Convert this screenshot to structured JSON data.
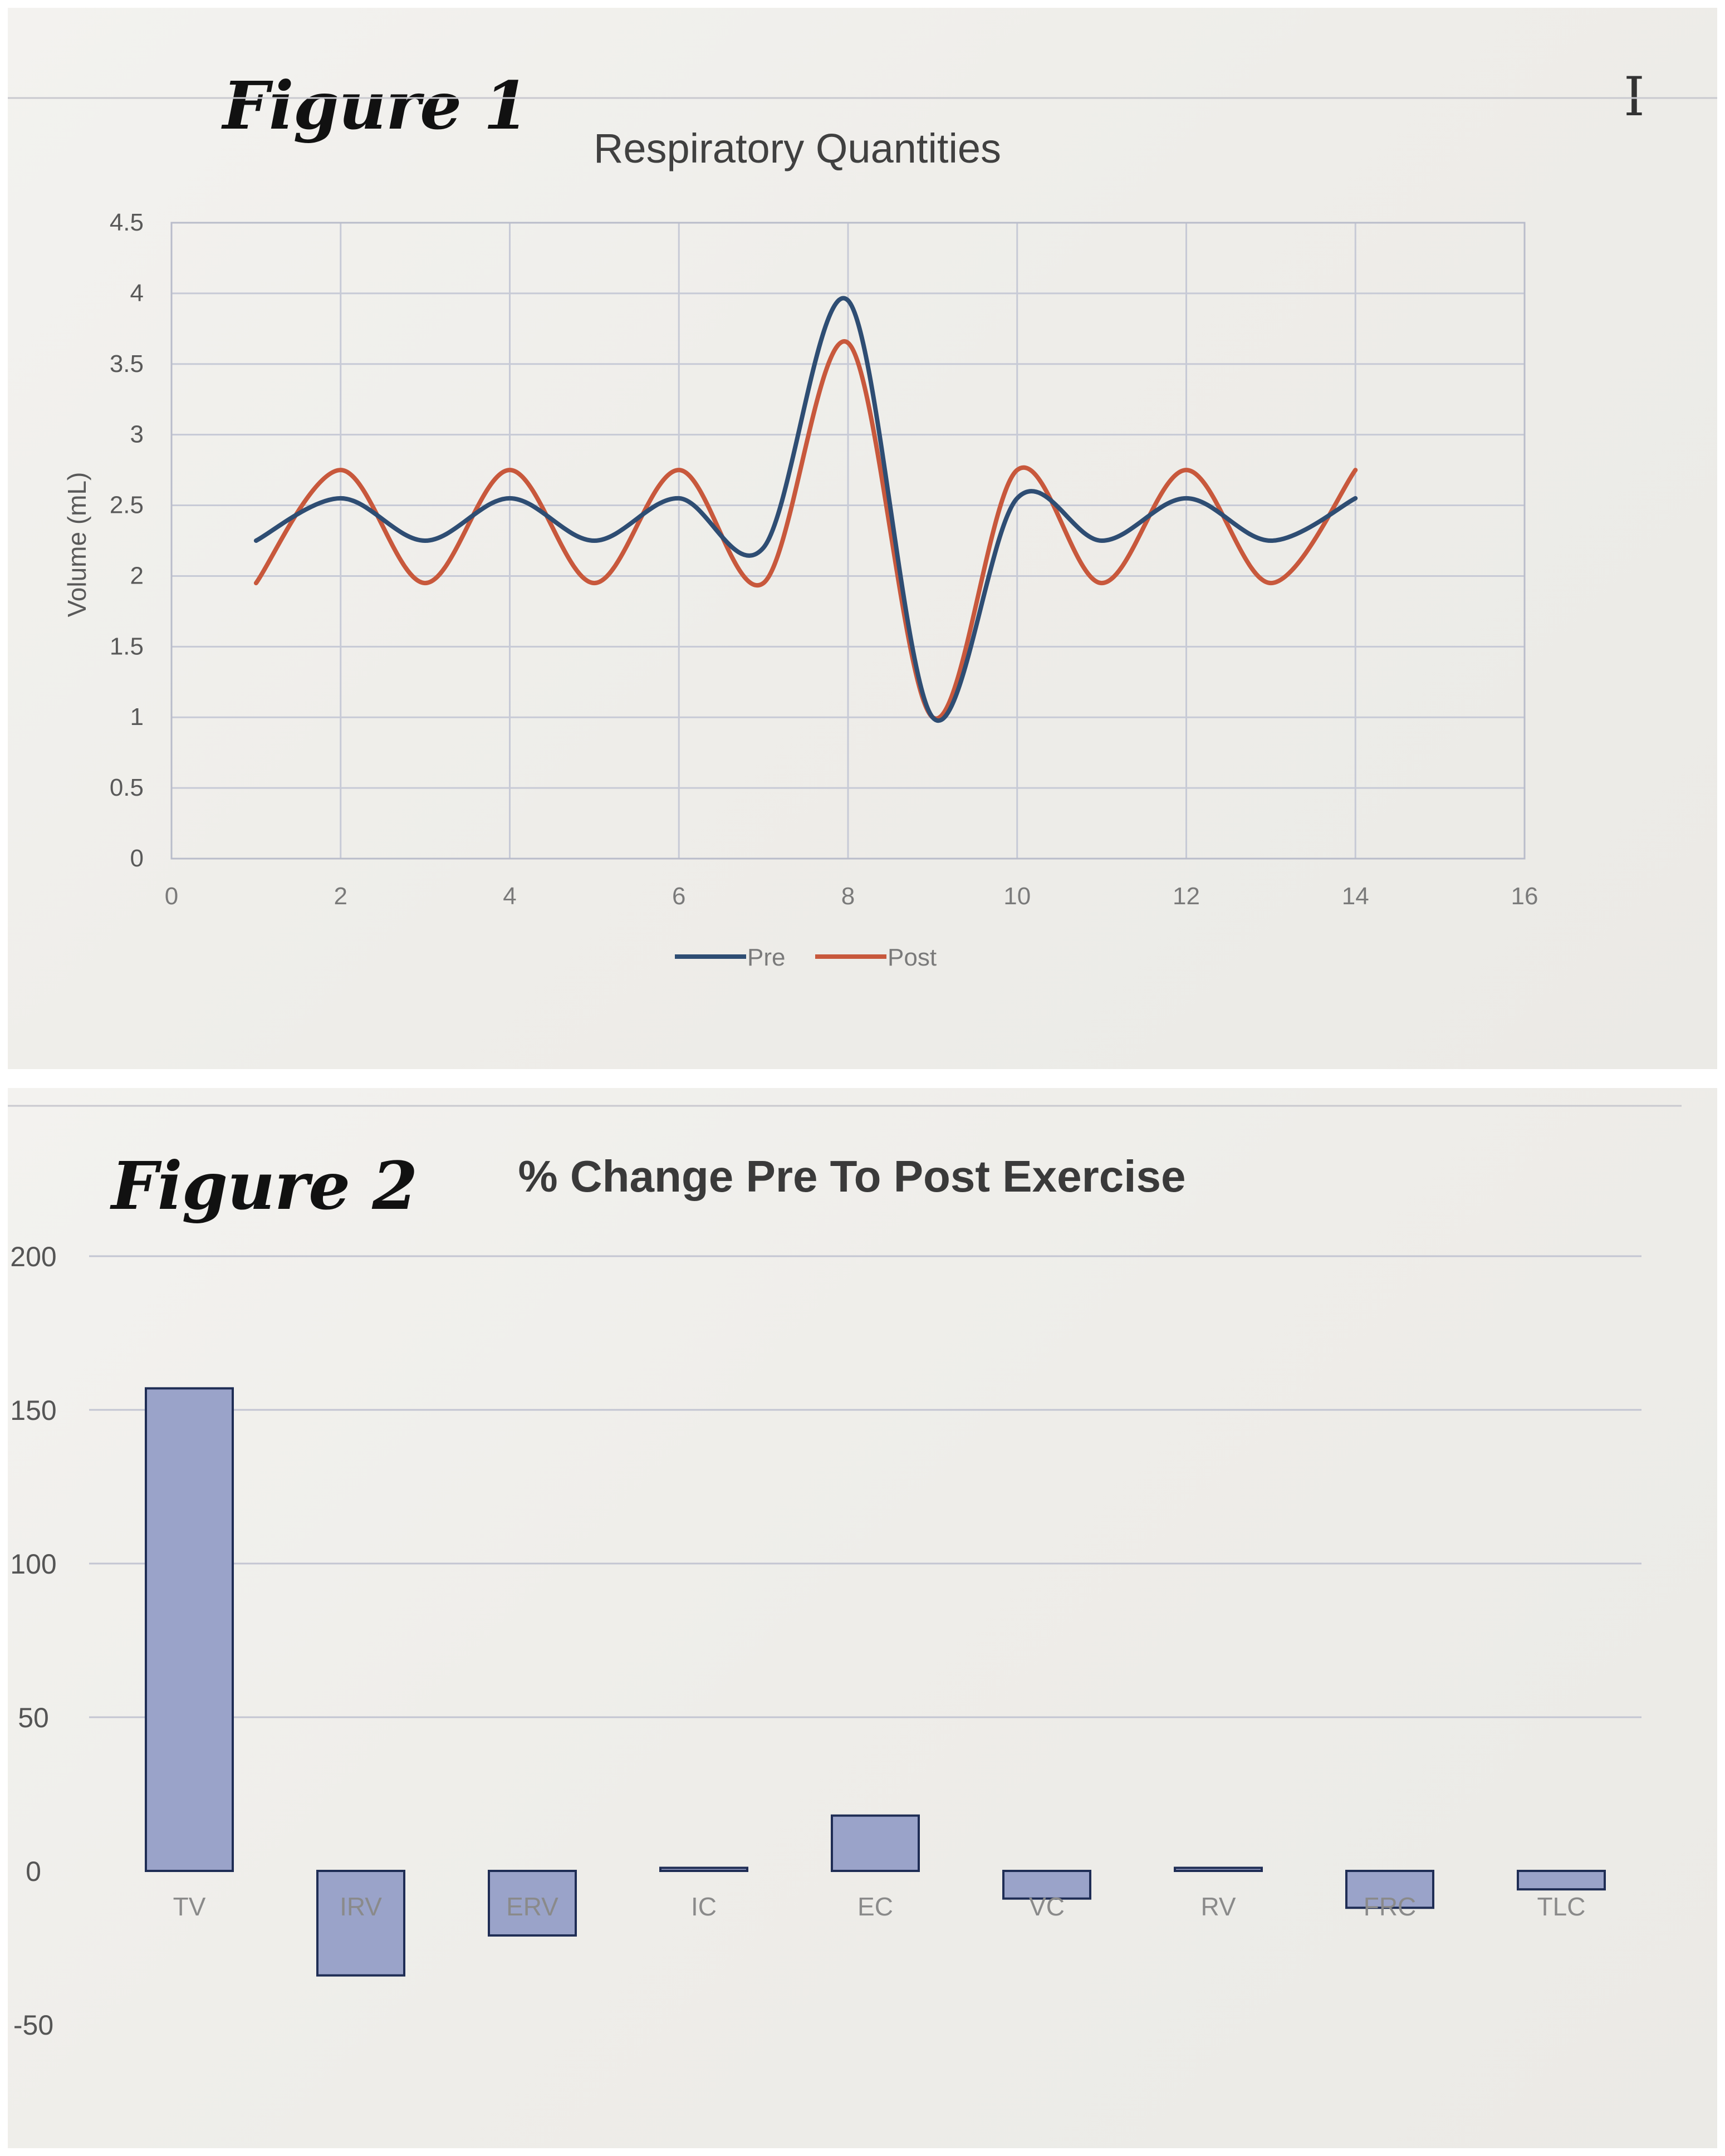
{
  "figure_labels": [
    "Figure 1",
    "Figure 2"
  ],
  "icons": {
    "text_cursor": "text-cursor-icon"
  },
  "colors": {
    "pre": "#2e4d73",
    "post": "#c8583c",
    "bar_fill": "#9aa3c9",
    "bar_stroke": "#1f2d55"
  },
  "chart_data": [
    {
      "type": "line",
      "title": "Respiratory Quantities",
      "xlabel": "",
      "ylabel": "Volume (mL)",
      "xlim": [
        0,
        16
      ],
      "ylim": [
        0,
        4.5
      ],
      "xticks": [
        "0",
        "2",
        "4",
        "6",
        "8",
        "10",
        "12",
        "14",
        "16"
      ],
      "yticks": [
        "0",
        "0.5",
        "1",
        "1.5",
        "2",
        "2.5",
        "3",
        "3.5",
        "4",
        "4.5"
      ],
      "grid": true,
      "legend": "bottom",
      "series": [
        {
          "name": "Pre",
          "x": [
            1,
            2,
            3,
            4,
            5,
            6,
            7,
            8,
            9,
            10,
            11,
            12,
            13,
            14
          ],
          "values": [
            2.25,
            2.55,
            2.25,
            2.55,
            2.25,
            2.55,
            2.2,
            3.95,
            1.0,
            2.55,
            2.25,
            2.55,
            2.25,
            2.55
          ]
        },
        {
          "name": "Post",
          "x": [
            1,
            2,
            3,
            4,
            5,
            6,
            7,
            8,
            9,
            10,
            11,
            12,
            13,
            14
          ],
          "values": [
            1.95,
            2.75,
            1.95,
            2.75,
            1.95,
            2.75,
            1.95,
            3.65,
            1.0,
            2.75,
            1.95,
            2.75,
            1.95,
            2.75
          ]
        }
      ]
    },
    {
      "type": "bar",
      "title": "% Change Pre To Post Exercise",
      "xlabel": "",
      "ylabel": "",
      "categories": [
        "TV",
        "IRV",
        "ERV",
        "IC",
        "EC",
        "VC",
        "RV",
        "FRC",
        "TLC"
      ],
      "values": [
        157,
        -34,
        -21,
        1,
        18,
        -9,
        1,
        -12,
        -6
      ],
      "ylim": [
        -50,
        200
      ],
      "yticks": [
        "-50",
        "0",
        "50",
        "100",
        "150",
        "200"
      ],
      "grid": true
    }
  ]
}
